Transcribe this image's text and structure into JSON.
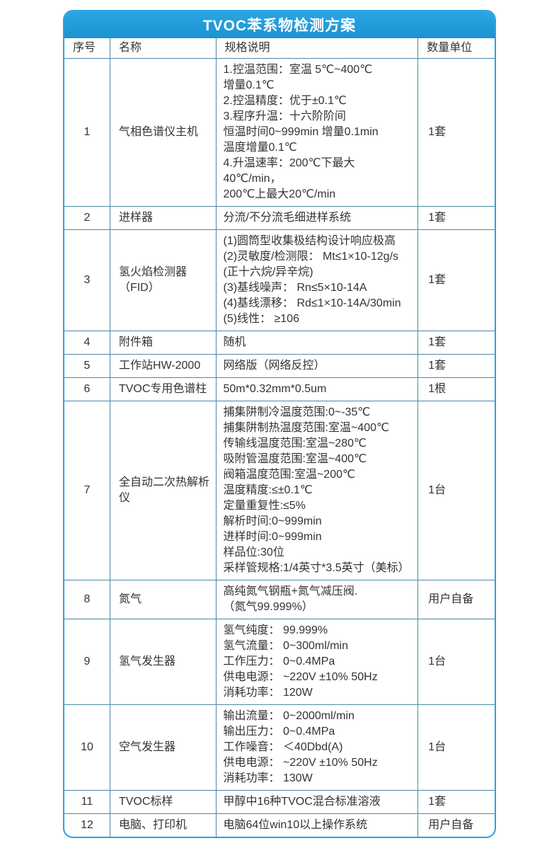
{
  "title": "TVOC苯系物检测方案",
  "colors": {
    "accent_blue": "#2aa2e0",
    "grid_line": "#4f87a6",
    "text": "#333333",
    "title_text": "#ffffff"
  },
  "table": {
    "headers": [
      "序号",
      "名称",
      "规格说明",
      "数量单位"
    ],
    "rows": [
      {
        "no": "1",
        "name": "气相色谱仪主机",
        "spec": [
          "1.控温范围：室温 5℃~400℃",
          "增量0.1℃",
          "2.控温精度：优于±0.1℃",
          "3.程序升温：十六阶阶间",
          "恒温时间0~999min 增量0.1min",
          "温度增量0.1℃",
          "4.升温速率：200℃下最大40℃/min，",
          "200℃上最大20℃/min"
        ],
        "qty": "1套"
      },
      {
        "no": "2",
        "name": "进样器",
        "spec": [
          "分流/不分流毛细进样系统"
        ],
        "qty": "1套"
      },
      {
        "no": "3",
        "name": "氢火焰检测器（FID）",
        "spec": [
          "(1)圆筒型收集极结构设计响应极高",
          "(2)灵敏度/检测限： Mt≤1×10-12g/s",
          "(正十六烷/异辛烷)",
          "(3)基线噪声： Rn≤5×10-14A",
          "(4)基线漂移： Rd≤1×10-14A/30min",
          "(5)线性： ≥106"
        ],
        "qty": "1套"
      },
      {
        "no": "4",
        "name": "附件箱",
        "spec": [
          "随机"
        ],
        "qty": "1套"
      },
      {
        "no": "5",
        "name": "工作站HW-2000",
        "spec": [
          "网络版（网络反控）"
        ],
        "qty": "1套"
      },
      {
        "no": "6",
        "name": "TVOC专用色谱柱",
        "spec": [
          "50m*0.32mm*0.5um"
        ],
        "qty": "1根"
      },
      {
        "no": "7",
        "name": "全自动二次热解析仪",
        "spec": [
          "捕集阱制冷温度范围:0~-35℃",
          "捕集阱制热温度范围:室温~400℃",
          "传输线温度范围:室温~280℃",
          "吸附管温度范围:室温~400℃",
          "阀箱温度范围:室温~200℃",
          "温度精度:≤±0.1℃",
          "定量重复性:≤5%",
          "解析时间:0~999min",
          "进样时间:0~999min",
          "样品位:30位",
          "采样管规格:1/4英寸*3.5英寸（美标）"
        ],
        "qty": "1台"
      },
      {
        "no": "8",
        "name": "氮气",
        "spec": [
          "高纯氮气钢瓶+氮气减压阀.",
          "（氮气99.999%）"
        ],
        "qty": "用户自备"
      },
      {
        "no": "9",
        "name": "氢气发生器",
        "spec": [
          "氢气纯度： 99.999%",
          "氢气流量： 0~300ml/min",
          "工作压力： 0~0.4MPa",
          "供电电源： ~220V ±10% 50Hz",
          "消耗功率： 120W"
        ],
        "qty": "1台"
      },
      {
        "no": "10",
        "name": "空气发生器",
        "spec": [
          "输出流量： 0~2000ml/min",
          "输出压力： 0~0.4MPa",
          "工作噪音： ＜40Dbd(A)",
          "供电电源： ~220V ±10% 50Hz",
          "消耗功率： 130W"
        ],
        "qty": "1台"
      },
      {
        "no": "11",
        "name": "TVOC标样",
        "spec": [
          "甲醇中16种TVOC混合标准溶液"
        ],
        "qty": "1套"
      },
      {
        "no": "12",
        "name": "电脑、打印机",
        "spec": [
          "电脑64位win10以上操作系统"
        ],
        "qty": "用户自备"
      }
    ]
  }
}
